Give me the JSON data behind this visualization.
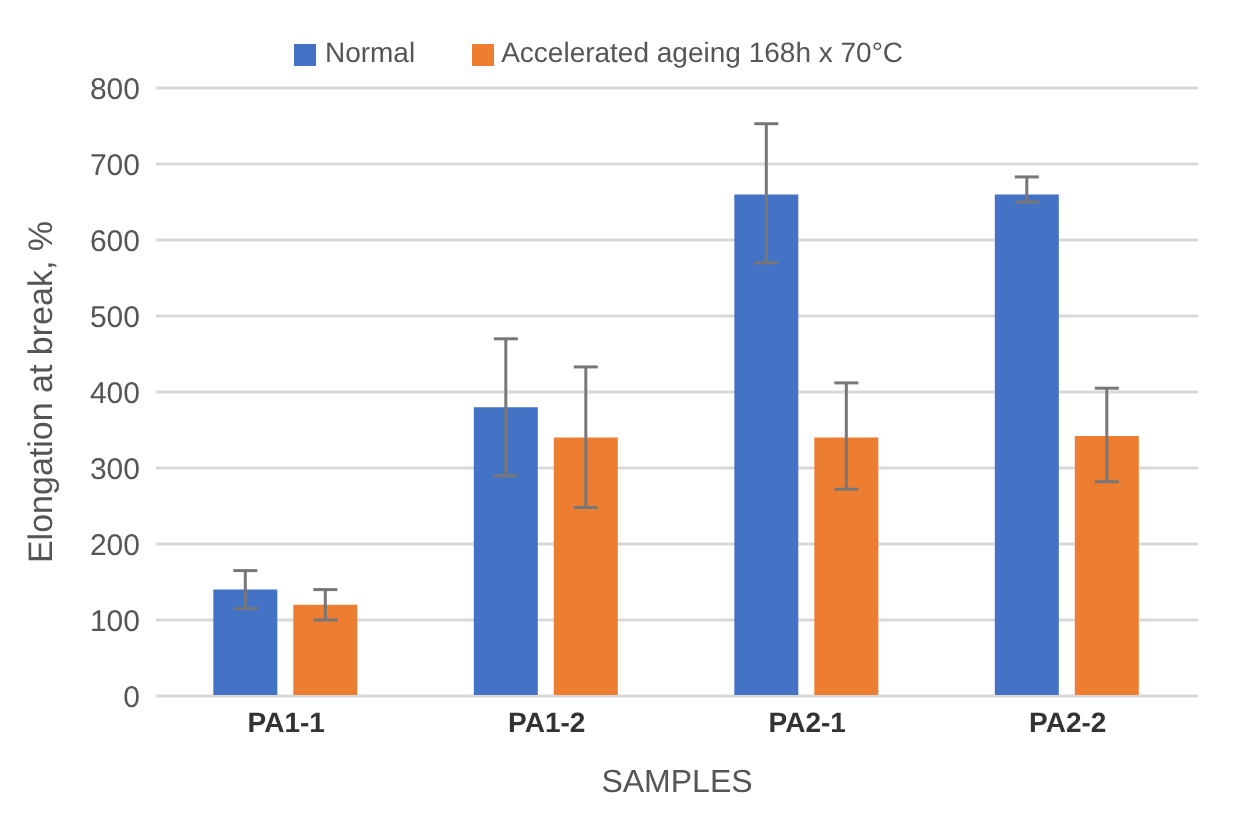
{
  "chart_data": {
    "type": "bar",
    "xlabel": "SAMPLES",
    "ylabel": "Elongation at break, %",
    "categories": [
      "PA1-1",
      "PA1-2",
      "PA2-1",
      "PA2-2"
    ],
    "series": [
      {
        "name": "Normal",
        "color": "#4472c4",
        "values": [
          140,
          380,
          660,
          660
        ],
        "errors": [
          [
            115,
            165
          ],
          [
            290,
            470
          ],
          [
            570,
            753
          ],
          [
            650,
            683
          ]
        ]
      },
      {
        "name": "Accelerated ageing 168h x 70°C",
        "color": "#ed7d31",
        "values": [
          120,
          340,
          340,
          342
        ],
        "errors": [
          [
            100,
            140
          ],
          [
            248,
            433
          ],
          [
            272,
            412
          ],
          [
            282,
            405
          ]
        ]
      }
    ],
    "ylim": [
      0,
      800
    ],
    "yticks": [
      0,
      100,
      200,
      300,
      400,
      500,
      600,
      700,
      800
    ],
    "grid": "y",
    "legend": "top"
  }
}
